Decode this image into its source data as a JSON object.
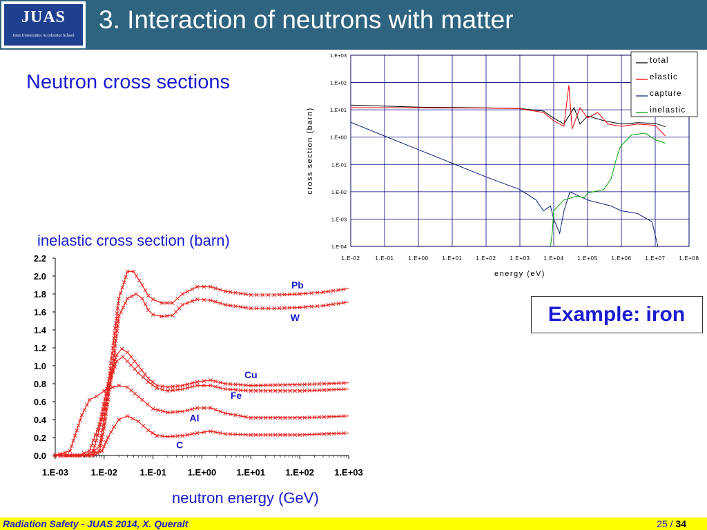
{
  "header": {
    "logo_title": "JUAS",
    "logo_subtitle": "Joint Universities Accelerator School",
    "title": "3. Interaction of neutrons with matter"
  },
  "subtitle": "Neutron cross sections",
  "callout": "Example: iron",
  "footer": {
    "text": "Radiation Safety - JUAS 2014,  X. Queralt",
    "page_current": "25",
    "page_sep": " / ",
    "page_total": "34"
  },
  "colors": {
    "header_bg": "#2e6480",
    "footer_bg": "#ffff00",
    "accent_text": "#1a1ad0",
    "left_series": "#e8201c",
    "total": "#000000",
    "elastic": "#ff0000",
    "capture": "#0b1f7a",
    "inelastic": "#00a000"
  },
  "chart_data": [
    {
      "type": "line",
      "title": "",
      "xlabel": "energy (eV)",
      "ylabel": "cross section (barn)",
      "xscale": "log",
      "yscale": "log",
      "xlim": [
        0.01,
        100000000
      ],
      "ylim": [
        0.0001,
        1000
      ],
      "x_ticks": [
        "1.E-02",
        "1.E-01",
        "1.E+00",
        "1.E+01",
        "1.E+02",
        "1.E+03",
        "1.E+04",
        "1.E+05",
        "1.E+06",
        "1.E+07",
        "1.E+08"
      ],
      "y_ticks": [
        "1.E+03",
        "1.E+02",
        "1.E+01",
        "1.E+00",
        "1.E-01",
        "1.E-02",
        "1.E-03",
        "1.E-04"
      ],
      "grid": true,
      "legend_position": "top-right",
      "series": [
        {
          "name": "total",
          "color": "#000000",
          "points": [
            [
              0.01,
              15
            ],
            [
              1,
              12.5
            ],
            [
              100,
              11.8
            ],
            [
              1000,
              11.2
            ],
            [
              5000,
              9
            ],
            [
              10000,
              5
            ],
            [
              20000,
              3
            ],
            [
              40000,
              12
            ],
            [
              60000,
              3
            ],
            [
              100000,
              6
            ],
            [
              300000,
              4
            ],
            [
              1000000,
              3
            ],
            [
              3000000,
              3.4
            ],
            [
              10000000,
              3.2
            ],
            [
              20000000,
              2.4
            ]
          ]
        },
        {
          "name": "elastic",
          "color": "#ff0000",
          "points": [
            [
              0.01,
              12
            ],
            [
              1,
              11.8
            ],
            [
              100,
              11.6
            ],
            [
              1000,
              11
            ],
            [
              5000,
              8
            ],
            [
              10000,
              4
            ],
            [
              20000,
              2.5
            ],
            [
              28000,
              80
            ],
            [
              35000,
              2
            ],
            [
              60000,
              12
            ],
            [
              100000,
              5
            ],
            [
              200000,
              8
            ],
            [
              400000,
              3
            ],
            [
              1000000,
              2.5
            ],
            [
              3000000,
              3
            ],
            [
              10000000,
              2.7
            ],
            [
              20000000,
              1.1
            ]
          ]
        },
        {
          "name": "capture",
          "color": "#0b1f7a",
          "points": [
            [
              0.01,
              3.5
            ],
            [
              0.1,
              1.1
            ],
            [
              1,
              0.35
            ],
            [
              10,
              0.11
            ],
            [
              100,
              0.035
            ],
            [
              1000,
              0.012
            ],
            [
              3000,
              0.005
            ],
            [
              5000,
              0.002
            ],
            [
              8000,
              0.003
            ],
            [
              10000,
              0.001
            ],
            [
              15000,
              0.0003
            ],
            [
              20000,
              0.002
            ],
            [
              30000,
              0.01
            ],
            [
              100000,
              0.005
            ],
            [
              500000,
              0.003
            ],
            [
              1000000,
              0.002
            ],
            [
              3000000,
              0.0016
            ],
            [
              8000000,
              0.0008
            ],
            [
              12000000,
              0.0001
            ]
          ]
        },
        {
          "name": "inelastic",
          "color": "#00a000",
          "points": [
            [
              8000,
              0.0001
            ],
            [
              9000,
              0.0003
            ],
            [
              10000,
              0.002
            ],
            [
              20000,
              0.005
            ],
            [
              50000,
              0.007
            ],
            [
              80000,
              0.006
            ],
            [
              100000,
              0.009
            ],
            [
              300000,
              0.012
            ],
            [
              500000,
              0.03
            ],
            [
              700000,
              0.15
            ],
            [
              900000,
              0.4
            ],
            [
              1000000,
              0.5
            ],
            [
              2000000,
              1.2
            ],
            [
              5000000,
              1.4
            ],
            [
              10000000,
              0.8
            ],
            [
              20000000,
              0.6
            ]
          ]
        }
      ]
    },
    {
      "type": "line",
      "title": "inelastic cross section (barn)",
      "xlabel": "neutron energy (GeV)",
      "ylabel": "",
      "xscale": "log",
      "xlim": [
        0.001,
        1000
      ],
      "ylim": [
        0,
        2.2
      ],
      "x_ticks": [
        "1.E-03",
        "1.E-02",
        "1.E-01",
        "1.E+00",
        "1.E+01",
        "1.E+02",
        "1.E+03"
      ],
      "y_ticks": [
        "2.2",
        "2.0",
        "1.8",
        "1.6",
        "1.4",
        "1.2",
        "1.0",
        "0.8",
        "0.6",
        "0.4",
        "0.2",
        "0.0"
      ],
      "grid": false,
      "series": [
        {
          "name": "Pb",
          "label_at": [
            90,
            1.86
          ],
          "points": [
            [
              0.001,
              0
            ],
            [
              0.005,
              0
            ],
            [
              0.008,
              0.1
            ],
            [
              0.01,
              0.4
            ],
            [
              0.015,
              1.2
            ],
            [
              0.02,
              1.75
            ],
            [
              0.03,
              2.05
            ],
            [
              0.04,
              2.05
            ],
            [
              0.06,
              1.9
            ],
            [
              0.08,
              1.78
            ],
            [
              0.1,
              1.74
            ],
            [
              0.15,
              1.7
            ],
            [
              0.25,
              1.7
            ],
            [
              0.4,
              1.8
            ],
            [
              0.8,
              1.88
            ],
            [
              1.5,
              1.88
            ],
            [
              3,
              1.83
            ],
            [
              10,
              1.79
            ],
            [
              30,
              1.79
            ],
            [
              100,
              1.8
            ],
            [
              300,
              1.82
            ],
            [
              1000,
              1.86
            ]
          ]
        },
        {
          "name": "W",
          "label_at": [
            80,
            1.5
          ],
          "points": [
            [
              0.001,
              0
            ],
            [
              0.005,
              0
            ],
            [
              0.008,
              0.05
            ],
            [
              0.01,
              0.3
            ],
            [
              0.015,
              1.0
            ],
            [
              0.02,
              1.55
            ],
            [
              0.03,
              1.75
            ],
            [
              0.045,
              1.8
            ],
            [
              0.06,
              1.75
            ],
            [
              0.08,
              1.62
            ],
            [
              0.1,
              1.57
            ],
            [
              0.15,
              1.55
            ],
            [
              0.25,
              1.56
            ],
            [
              0.4,
              1.68
            ],
            [
              0.8,
              1.74
            ],
            [
              1.5,
              1.73
            ],
            [
              3,
              1.68
            ],
            [
              10,
              1.64
            ],
            [
              30,
              1.64
            ],
            [
              100,
              1.65
            ],
            [
              300,
              1.67
            ],
            [
              1000,
              1.71
            ]
          ]
        },
        {
          "name": "Cu",
          "label_at": [
            10,
            0.86
          ],
          "points": [
            [
              0.001,
              0
            ],
            [
              0.003,
              0
            ],
            [
              0.005,
              0.05
            ],
            [
              0.008,
              0.35
            ],
            [
              0.012,
              0.8
            ],
            [
              0.018,
              1.12
            ],
            [
              0.023,
              1.19
            ],
            [
              0.03,
              1.15
            ],
            [
              0.05,
              1.0
            ],
            [
              0.08,
              0.86
            ],
            [
              0.12,
              0.78
            ],
            [
              0.2,
              0.76
            ],
            [
              0.4,
              0.78
            ],
            [
              0.8,
              0.82
            ],
            [
              1.5,
              0.84
            ],
            [
              3,
              0.8
            ],
            [
              10,
              0.78
            ],
            [
              100,
              0.79
            ],
            [
              1000,
              0.81
            ]
          ]
        },
        {
          "name": "Fe",
          "label_at": [
            5,
            0.63
          ],
          "points": [
            [
              0.001,
              0
            ],
            [
              0.004,
              0
            ],
            [
              0.006,
              0.05
            ],
            [
              0.009,
              0.4
            ],
            [
              0.013,
              0.8
            ],
            [
              0.018,
              1.05
            ],
            [
              0.024,
              1.1
            ],
            [
              0.03,
              1.05
            ],
            [
              0.05,
              0.92
            ],
            [
              0.08,
              0.82
            ],
            [
              0.12,
              0.75
            ],
            [
              0.2,
              0.72
            ],
            [
              0.4,
              0.74
            ],
            [
              0.8,
              0.78
            ],
            [
              1.5,
              0.78
            ],
            [
              3,
              0.74
            ],
            [
              10,
              0.72
            ],
            [
              100,
              0.72
            ],
            [
              1000,
              0.74
            ]
          ]
        },
        {
          "name": "Al",
          "label_at": [
            0.7,
            0.38
          ],
          "points": [
            [
              0.001,
              0
            ],
            [
              0.002,
              0.05
            ],
            [
              0.0035,
              0.45
            ],
            [
              0.005,
              0.62
            ],
            [
              0.007,
              0.66
            ],
            [
              0.01,
              0.72
            ],
            [
              0.015,
              0.76
            ],
            [
              0.02,
              0.78
            ],
            [
              0.03,
              0.76
            ],
            [
              0.06,
              0.62
            ],
            [
              0.1,
              0.52
            ],
            [
              0.2,
              0.48
            ],
            [
              0.4,
              0.49
            ],
            [
              0.8,
              0.53
            ],
            [
              1.5,
              0.53
            ],
            [
              3,
              0.47
            ],
            [
              10,
              0.42
            ],
            [
              100,
              0.42
            ],
            [
              1000,
              0.44
            ]
          ]
        },
        {
          "name": "C",
          "label_at": [
            0.35,
            0.08
          ],
          "points": [
            [
              0.001,
              0
            ],
            [
              0.006,
              0
            ],
            [
              0.009,
              0.05
            ],
            [
              0.012,
              0.2
            ],
            [
              0.016,
              0.32
            ],
            [
              0.02,
              0.4
            ],
            [
              0.03,
              0.44
            ],
            [
              0.05,
              0.38
            ],
            [
              0.08,
              0.28
            ],
            [
              0.12,
              0.22
            ],
            [
              0.2,
              0.21
            ],
            [
              0.4,
              0.22
            ],
            [
              0.8,
              0.25
            ],
            [
              1.5,
              0.27
            ],
            [
              3,
              0.24
            ],
            [
              10,
              0.23
            ],
            [
              100,
              0.23
            ],
            [
              1000,
              0.25
            ]
          ]
        }
      ]
    }
  ]
}
